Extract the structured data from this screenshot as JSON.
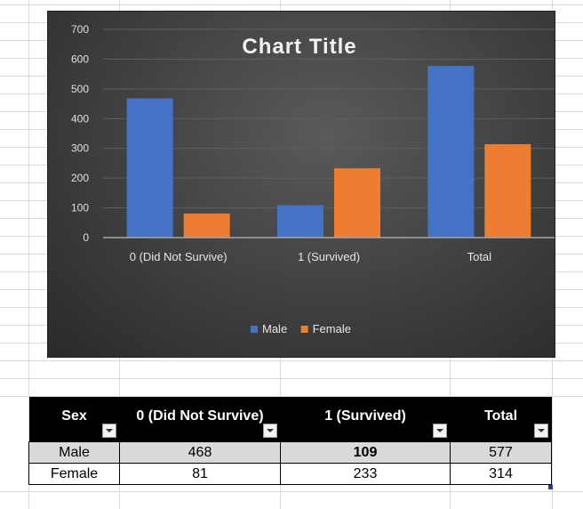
{
  "chart_data": {
    "type": "bar",
    "title": "Chart Title",
    "categories": [
      "0 (Did Not Survive)",
      "1 (Survived)",
      "Total"
    ],
    "series": [
      {
        "name": "Male",
        "values": [
          468,
          109,
          577
        ],
        "color": "#4472c4"
      },
      {
        "name": "Female",
        "values": [
          81,
          233,
          314
        ],
        "color": "#ed7d31"
      }
    ],
    "ylim": [
      0,
      700
    ],
    "yticks": [
      0,
      100,
      200,
      300,
      400,
      500,
      600,
      700
    ],
    "grid": true,
    "legend_position": "bottom"
  },
  "table": {
    "headers": [
      "Sex",
      "0 (Did Not Survive)",
      "1 (Survived)",
      "Total"
    ],
    "rows": [
      {
        "label": "Male",
        "values": [
          "468",
          "109",
          "577"
        ]
      },
      {
        "label": "Female",
        "values": [
          "81",
          "233",
          "314"
        ]
      }
    ]
  }
}
